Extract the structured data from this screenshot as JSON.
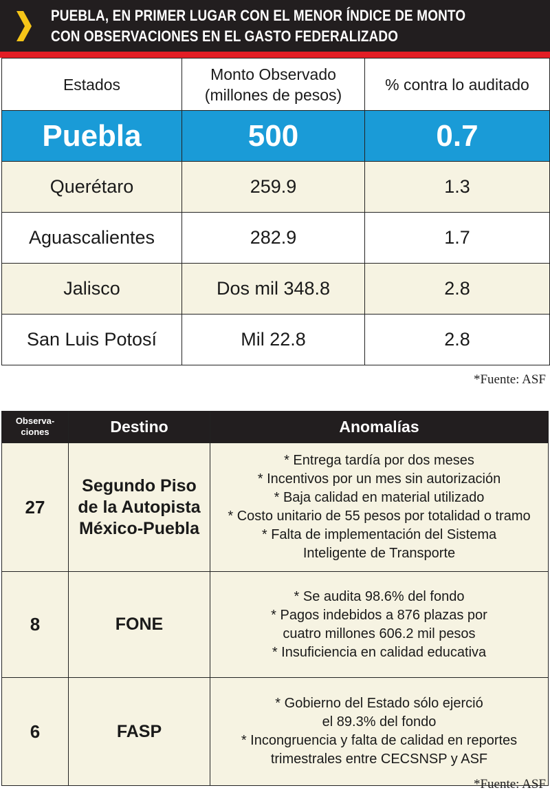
{
  "header": {
    "title_line1": "PUEBLA, EN PRIMER LUGAR CON EL MENOR ÍNDICE DE MONTO",
    "title_line2": "CON OBSERVACIONES EN EL GASTO FEDERALIZADO",
    "chevron_icon": "chevron-right-icon",
    "accent_color": "#f5c518",
    "rule_color": "#e21d24"
  },
  "table1": {
    "headers": [
      "Estados",
      "Monto Observado",
      "(millones de pesos)",
      "% contra lo auditado"
    ],
    "highlight_color": "#1a9bd7",
    "rows": [
      {
        "estado": "Puebla",
        "monto": "500",
        "porcentaje": "0.7"
      },
      {
        "estado": "Querétaro",
        "monto": "259.9",
        "porcentaje": "1.3"
      },
      {
        "estado": "Aguascalientes",
        "monto": "282.9",
        "porcentaje": "1.7"
      },
      {
        "estado": "Jalisco",
        "monto": "Dos mil 348.8",
        "porcentaje": "2.8"
      },
      {
        "estado": "San Luis Potosí",
        "monto": "Mil 22.8",
        "porcentaje": "2.8"
      }
    ],
    "source": "*Fuente: ASF"
  },
  "table2": {
    "headers": {
      "obs_line1": "Observa-",
      "obs_line2": "ciones",
      "destino": "Destino",
      "anomalias": "Anomalías"
    },
    "rows": [
      {
        "observaciones": "27",
        "destino": [
          "Segundo Piso",
          "de la Autopista",
          "México-Puebla"
        ],
        "anomalias": [
          "* Entrega tardía por dos meses",
          "* Incentivos por un mes sin autorización",
          "* Baja calidad en material utilizado",
          "* Costo unitario de 55 pesos por totalidad o tramo",
          "* Falta de implementación del Sistema",
          "Inteligente de Transporte"
        ]
      },
      {
        "observaciones": "8",
        "destino": [
          "FONE"
        ],
        "anomalias": [
          "* Se audita 98.6% del fondo",
          "* Pagos indebidos a 876 plazas por",
          "cuatro millones 606.2 mil pesos",
          "* Insuficiencia en calidad educativa"
        ]
      },
      {
        "observaciones": "6",
        "destino": [
          "FASP"
        ],
        "anomalias": [
          "* Gobierno del Estado sólo ejerció",
          "el 89.3% del fondo",
          "* Incongruencia y falta de calidad en reportes",
          "trimestrales entre CECSNSP y ASF"
        ]
      }
    ],
    "source": "*Fuente: ASF"
  }
}
